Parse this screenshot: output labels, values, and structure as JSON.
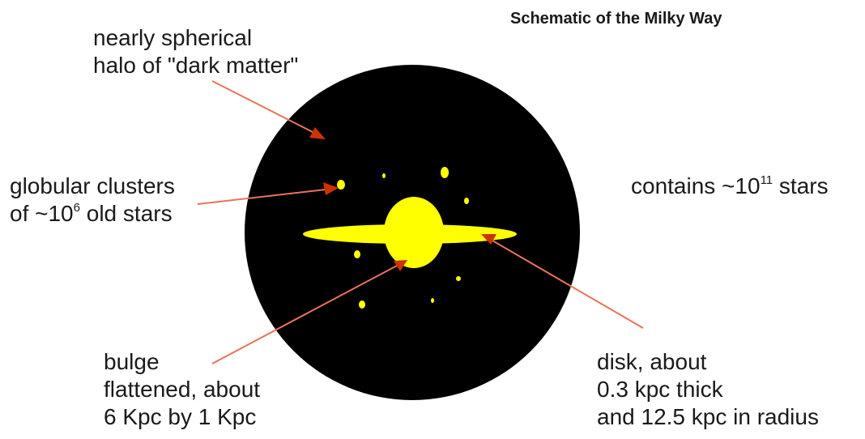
{
  "title": "Schematic of the Milky Way",
  "labels": {
    "halo": [
      "nearly spherical",
      "halo of \"dark matter\""
    ],
    "globular": {
      "line1": "globular clusters",
      "line2_pre": "of ~10",
      "line2_exp": "6",
      "line2_post": " old stars"
    },
    "stars": {
      "pre": "contains ~10",
      "exp": "11",
      "post": " stars"
    },
    "bulge": [
      "bulge",
      "flattened, about",
      "6 Kpc by 1 Kpc"
    ],
    "disk": [
      "disk, about",
      "0.3 kpc thick",
      "and 12.5 kpc in radius"
    ]
  },
  "colors": {
    "halo": "#000000",
    "galaxy": "#ffff00",
    "arrow": "#e8735a",
    "arrowhead": "#cc3300"
  }
}
